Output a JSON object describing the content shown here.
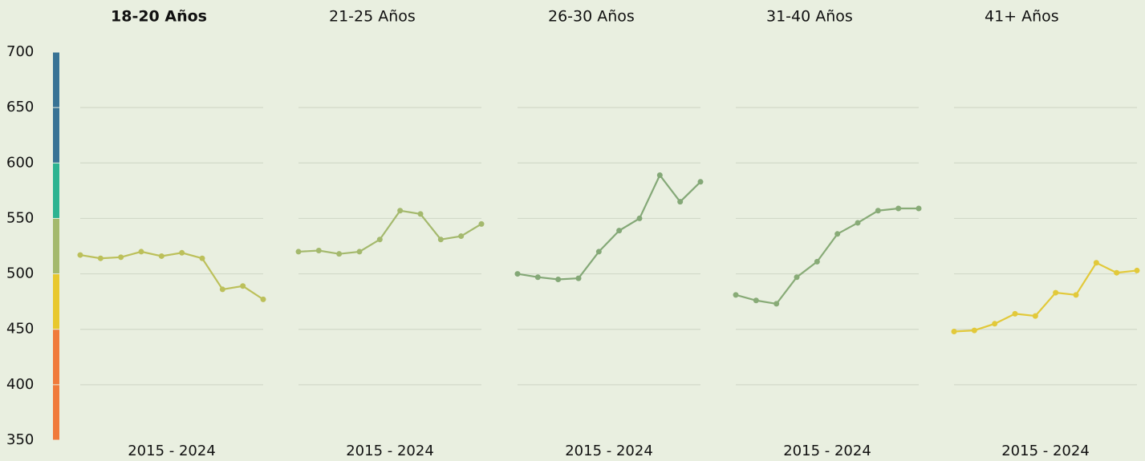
{
  "chart_data": {
    "type": "line",
    "ylim": [
      350,
      700
    ],
    "yticks": [
      350,
      400,
      450,
      500,
      550,
      600,
      650,
      700
    ],
    "grid": true,
    "color_scale": [
      {
        "min": 350,
        "max": 400,
        "color": "#f07a3b"
      },
      {
        "min": 400,
        "max": 450,
        "color": "#f07a3b"
      },
      {
        "min": 450,
        "max": 500,
        "color": "#e8c82e"
      },
      {
        "min": 500,
        "max": 550,
        "color": "#a4b96d"
      },
      {
        "min": 550,
        "max": 600,
        "color": "#2db391"
      },
      {
        "min": 600,
        "max": 650,
        "color": "#387395"
      },
      {
        "min": 650,
        "max": 700,
        "color": "#387395"
      }
    ],
    "panels": [
      {
        "title": "18-20 Años",
        "x_label": "2015 - 2024",
        "color": "#bcc05a",
        "values": [
          517,
          514,
          515,
          520,
          516,
          519,
          514,
          486,
          489,
          477
        ]
      },
      {
        "title": "21-25 Años",
        "x_label": "2015 - 2024",
        "color": "#a4b96d",
        "values": [
          520,
          521,
          518,
          520,
          531,
          557,
          554,
          531,
          534,
          545
        ]
      },
      {
        "title": "26-30 Años",
        "x_label": "2015 - 2024",
        "color": "#84a877",
        "values": [
          500,
          497,
          495,
          496,
          520,
          539,
          550,
          589,
          565,
          583
        ]
      },
      {
        "title": "31-40 Años",
        "x_label": "2015 - 2024",
        "color": "#88ab77",
        "values": [
          481,
          476,
          473,
          497,
          511,
          536,
          546,
          557,
          559,
          559
        ]
      },
      {
        "title": "41+ Años",
        "x_label": "2015 - 2024",
        "color": "#e2c93a",
        "values": [
          448,
          449,
          455,
          464,
          462,
          483,
          481,
          510,
          501,
          503
        ]
      }
    ]
  }
}
